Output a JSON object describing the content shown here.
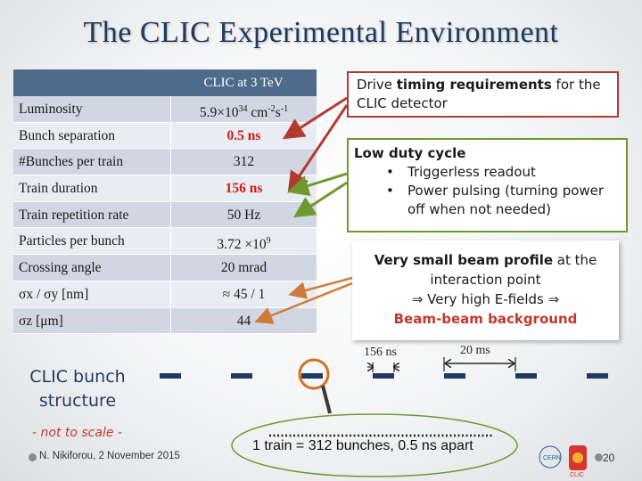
{
  "slide": {
    "title": "The CLIC Experimental Environment",
    "page_number": "20",
    "author_date": "N. Nikiforou, 2 November 2015"
  },
  "table": {
    "header": "CLIC at 3 TeV",
    "rows": [
      {
        "label": "Luminosity",
        "value": "5.9×10",
        "sup": "34",
        "unit": " cm",
        "sup2": "-2",
        "unit2": "s",
        "sup3": "-1",
        "highlight": false
      },
      {
        "label": "Bunch separation",
        "value": "0.5 ns",
        "highlight": true
      },
      {
        "label": "#Bunches per train",
        "value": "312",
        "highlight": false
      },
      {
        "label": "Train duration",
        "value": "156 ns",
        "highlight": true
      },
      {
        "label": "Train repetition rate",
        "value": "50 Hz",
        "highlight": false
      },
      {
        "label": "Particles per bunch",
        "value": "3.72 ×10",
        "sup": "9",
        "highlight": false
      },
      {
        "label": "Crossing angle",
        "value": "20 mrad",
        "highlight": false
      },
      {
        "label": "σx / σy [nm]",
        "value": "≈ 45 / 1",
        "highlight": false
      },
      {
        "label": "σz [μm]",
        "value": "44",
        "highlight": false
      }
    ]
  },
  "callouts": {
    "timing": {
      "prefix": "Drive ",
      "bold": "timing requirements",
      "suffix": " for the CLIC detector"
    },
    "duty": {
      "title": "Low duty cycle",
      "bullets": [
        "Triggerless readout",
        "Power pulsing (turning power off when not needed)"
      ]
    },
    "beam": {
      "bold1": "Very small beam profile",
      "text1": " at the interaction point",
      "line2": "⇒ Very high E-fields ⇒",
      "line3": "Beam-beam background"
    }
  },
  "bunch_structure": {
    "title": "CLIC bunch structure",
    "scale_note": "- not to scale -",
    "train_duration_label": "156 ns",
    "gap_label": "20 ms",
    "train_summary": "1 train = 312 bunches, 0.5 ns apart"
  },
  "colors": {
    "title": "#1e3a5f",
    "table_header": "#4f6b8b",
    "highlight_red": "#cc1a0e",
    "arrow_red": "#b23b2f",
    "arrow_green": "#6e9a2c",
    "arrow_orange": "#d07a3a",
    "bunch_blue": "#1f3b63"
  },
  "icons": [
    "magnifier-icon",
    "cern-logo",
    "clic-logo"
  ]
}
